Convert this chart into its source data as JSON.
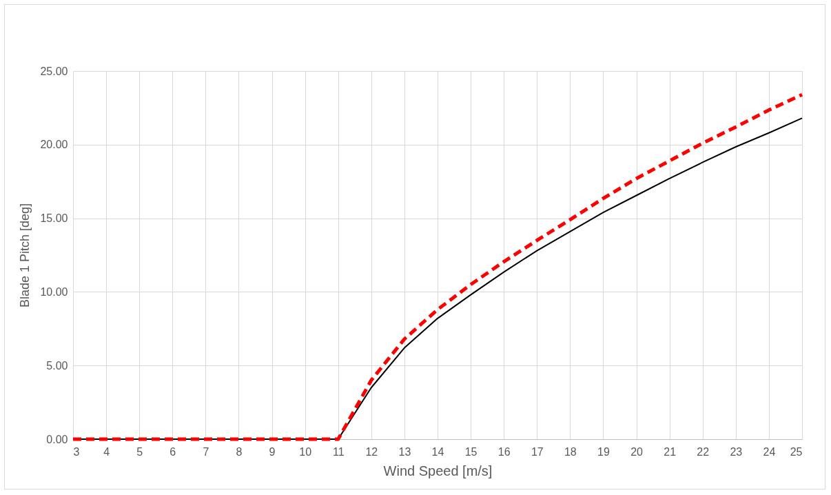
{
  "chart_data": {
    "type": "line",
    "xlabel": "Wind Speed [m/s]",
    "ylabel": "Blade 1 Pitch [deg]",
    "x": [
      3,
      4,
      5,
      6,
      7,
      8,
      9,
      10,
      11,
      12,
      13,
      14,
      15,
      16,
      17,
      18,
      19,
      20,
      21,
      22,
      23,
      24,
      25
    ],
    "series": [
      {
        "color": "#000000",
        "line_style": "solid",
        "values": [
          0,
          0,
          0,
          0,
          0,
          0,
          0,
          0,
          0,
          3.5,
          6.2,
          8.2,
          9.8,
          11.35,
          12.8,
          14.1,
          15.4,
          16.55,
          17.7,
          18.8,
          19.85,
          20.8,
          21.8
        ]
      },
      {
        "color": "#ff0000",
        "line_style": "dashed",
        "values": [
          0,
          0,
          0,
          0,
          0,
          0,
          0,
          0,
          0,
          4.0,
          6.8,
          8.8,
          10.5,
          12.05,
          13.5,
          14.9,
          16.35,
          17.7,
          18.9,
          20.1,
          21.2,
          22.35,
          23.4
        ]
      }
    ],
    "xlim": [
      3,
      25
    ],
    "xticks": [
      3,
      4,
      5,
      6,
      7,
      8,
      9,
      10,
      11,
      12,
      13,
      14,
      15,
      16,
      17,
      18,
      19,
      20,
      21,
      22,
      23,
      24,
      25
    ],
    "ylim": [
      0,
      25
    ],
    "yticks": [
      {
        "value": 0,
        "label": "0.00"
      },
      {
        "value": 5,
        "label": "5.00"
      },
      {
        "value": 10,
        "label": "10.00"
      },
      {
        "value": 15,
        "label": "15.00"
      },
      {
        "value": 20,
        "label": "20.00"
      },
      {
        "value": 25,
        "label": "25.00"
      }
    ],
    "grid": true
  }
}
